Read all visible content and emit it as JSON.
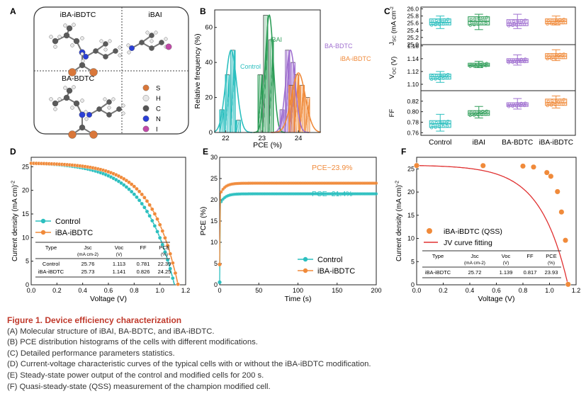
{
  "colors": {
    "control": "#2bbfbf",
    "ibai": "#2e9d58",
    "babdtc": "#a070d0",
    "ibaibdtc": "#f08a3a",
    "fit": "#e03030",
    "caption_title": "#c0392b"
  },
  "panelA": {
    "letter": "A",
    "labels": {
      "top_left": "iBA-iBDTC",
      "top_right": "iBAI",
      "bottom_left": "BA-BDTC"
    },
    "legend": [
      {
        "symbol": "S",
        "color": "#d9773a"
      },
      {
        "symbol": "H",
        "color": "#e6e6e6"
      },
      {
        "symbol": "C",
        "color": "#555555"
      },
      {
        "symbol": "N",
        "color": "#2a3fd6"
      },
      {
        "symbol": "I",
        "color": "#c24aa8"
      }
    ]
  },
  "chart_data": [
    {
      "panel": "B",
      "letter": "B",
      "type": "bar",
      "xlabel": "PCE (%)",
      "ylabel": "Relative frequency (%)",
      "xlim": [
        21.7,
        24.6
      ],
      "ylim": [
        0,
        70
      ],
      "xticks": [
        22,
        23,
        24
      ],
      "yticks": [
        0,
        20,
        40,
        60
      ],
      "series": [
        {
          "name": "Control",
          "key": "control",
          "x": [
            21.9,
            22.05,
            22.2,
            22.35
          ],
          "values": [
            13,
            33,
            47,
            7
          ]
        },
        {
          "name": "iBAI",
          "key": "ibai",
          "x": [
            22.95,
            23.1,
            23.25
          ],
          "values": [
            33,
            67,
            53
          ]
        },
        {
          "name": "BA-BDTC",
          "key": "babdtc",
          "x": [
            23.55,
            23.7,
            23.85
          ],
          "values": [
            13,
            47,
            40
          ]
        },
        {
          "name": "iBA-iBDTC",
          "key": "ibaibdtc",
          "x": [
            23.8,
            23.95,
            24.1,
            24.25
          ],
          "values": [
            27,
            33,
            27,
            20
          ]
        }
      ],
      "fits": [
        {
          "key": "control",
          "mu": 22.15,
          "sigma": 0.15,
          "peak": 47
        },
        {
          "key": "ibai",
          "mu": 23.2,
          "sigma": 0.11,
          "peak": 67
        },
        {
          "key": "babdtc",
          "mu": 23.78,
          "sigma": 0.13,
          "peak": 47
        },
        {
          "key": "ibaibdtc",
          "mu": 24.0,
          "sigma": 0.19,
          "peak": 34
        }
      ],
      "annotations": [
        "Control",
        "iBAI",
        "BA-BDTC",
        "iBA-iBDTC"
      ]
    },
    {
      "panel": "C",
      "letter": "C",
      "type": "box",
      "categories": [
        "Control",
        "iBAI",
        "BA-BDTC",
        "iBA-iBDTC"
      ],
      "subplots": [
        {
          "ylabel": "JSC (mA cm-2)",
          "ylabel_main": "J",
          "ylabel_sub": "SC",
          "ylabel_unit": " (mA cm",
          "ylabel_sup": "-2",
          "ylabel_close": ")",
          "ylim": [
            25.0,
            26.05
          ],
          "yticks": [
            25.0,
            25.2,
            25.4,
            25.6,
            25.8,
            26.0
          ],
          "tick_fmt": 1,
          "median": [
            25.62,
            25.65,
            25.6,
            25.65
          ],
          "q1": [
            25.55,
            25.55,
            25.53,
            25.58
          ],
          "q3": [
            25.72,
            25.78,
            25.7,
            25.72
          ],
          "min": [
            25.45,
            25.42,
            25.45,
            25.55
          ],
          "max": [
            25.8,
            25.85,
            25.85,
            25.8
          ]
        },
        {
          "ylabel": "VOC (V)",
          "ylabel_main": "V",
          "ylabel_sub": "OC",
          "ylabel_unit": " (V)",
          "ylabel_sup": "",
          "ylabel_close": "",
          "ylim": [
            1.09,
            1.162
          ],
          "yticks": [
            1.1,
            1.12,
            1.14,
            1.16
          ],
          "tick_fmt": 2,
          "median": [
            1.112,
            1.13,
            1.137,
            1.144
          ],
          "q1": [
            1.108,
            1.128,
            1.134,
            1.14
          ],
          "q3": [
            1.116,
            1.133,
            1.14,
            1.148
          ],
          "min": [
            1.103,
            1.126,
            1.13,
            1.137
          ],
          "max": [
            1.12,
            1.136,
            1.146,
            1.154
          ]
        },
        {
          "ylabel": "FF",
          "ylabel_main": "FF",
          "ylabel_sub": "",
          "ylabel_unit": "",
          "ylabel_sup": "",
          "ylabel_close": "",
          "ylim": [
            0.755,
            0.84
          ],
          "yticks": [
            0.76,
            0.78,
            0.8,
            0.82
          ],
          "tick_fmt": 2,
          "median": [
            0.777,
            0.797,
            0.813,
            0.817
          ],
          "q1": [
            0.77,
            0.793,
            0.81,
            0.812
          ],
          "q3": [
            0.783,
            0.802,
            0.817,
            0.824
          ],
          "min": [
            0.763,
            0.788,
            0.805,
            0.807
          ],
          "max": [
            0.795,
            0.81,
            0.825,
            0.83
          ]
        }
      ]
    },
    {
      "panel": "D",
      "letter": "D",
      "type": "line",
      "xlabel": "Voltage (V)",
      "ylabel": "Current density (mA cm-2)",
      "ylabel_main": "Current density (mA cm",
      "ylabel_sup": "-2",
      "ylabel_close": ")",
      "xlim": [
        0,
        1.2
      ],
      "ylim": [
        0,
        27
      ],
      "xticks": [
        0.0,
        0.2,
        0.4,
        0.6,
        0.8,
        1.0,
        1.2
      ],
      "yticks": [
        0,
        5,
        10,
        15,
        20,
        25
      ],
      "series": [
        {
          "name": "Control",
          "key": "control",
          "jsc": 25.76,
          "voc": 1.113,
          "n": 9,
          "v0": 0.55
        },
        {
          "name": "iBA-iBDTC",
          "key": "ibaibdtc",
          "jsc": 25.73,
          "voc": 1.141,
          "n": 8,
          "v0": 0.55
        }
      ],
      "table": {
        "headers": [
          {
            "main": "Type",
            "sub": ""
          },
          {
            "main": "Jsc",
            "sub": "(mA cm-2)"
          },
          {
            "main": "Voc",
            "sub": "(V)"
          },
          {
            "main": "FF",
            "sub": ""
          },
          {
            "main": "PCE",
            "sub": "(%)"
          }
        ],
        "rows": [
          [
            "Control",
            "25.76",
            "1.113",
            "0.781",
            "22.39"
          ],
          [
            "iBA-iBDTC",
            "25.73",
            "1.141",
            "0.826",
            "24.25"
          ]
        ]
      }
    },
    {
      "panel": "E",
      "letter": "E",
      "type": "line",
      "xlabel": "Time (s)",
      "ylabel": "PCE (%)",
      "xlim": [
        0,
        200
      ],
      "ylim": [
        0,
        30
      ],
      "xticks": [
        0,
        50,
        100,
        150,
        200
      ],
      "yticks": [
        0,
        5,
        10,
        15,
        20,
        25,
        30
      ],
      "series": [
        {
          "name": "Control",
          "key": "control",
          "steady": 21.4,
          "start": 0.6
        },
        {
          "name": "iBA-iBDTC",
          "key": "ibaibdtc",
          "steady": 23.9,
          "start": 4.8
        }
      ],
      "annotations": [
        "PCE~23.9%",
        "PCE~21.4%"
      ]
    },
    {
      "panel": "F",
      "letter": "F",
      "type": "scatter",
      "xlabel": "Voltage (V)",
      "ylabel": "Current density (mA cm-2)",
      "ylabel_main": "Current density (mA cm",
      "ylabel_sup": "-2",
      "ylabel_close": ")",
      "xlim": [
        0,
        1.2
      ],
      "ylim": [
        0,
        27.5
      ],
      "xticks": [
        0.0,
        0.2,
        0.4,
        0.6,
        0.8,
        1.0,
        1.2
      ],
      "yticks": [
        0,
        5,
        10,
        15,
        20,
        25
      ],
      "series": [
        {
          "name": "iBA-iBDTC (QSS)",
          "key": "ibaibdtc",
          "x": [
            0.0,
            0.5,
            0.8,
            0.88,
            0.98,
            1.01,
            1.06,
            1.09,
            1.12,
            1.14
          ],
          "y": [
            25.72,
            25.7,
            25.6,
            25.4,
            24.2,
            23.4,
            20.1,
            15.7,
            9.6,
            0.1
          ]
        },
        {
          "name": "JV curve fitting",
          "key": "fit",
          "jsc": 25.72,
          "voc": 1.139,
          "n": 8,
          "v0": 0.55
        }
      ],
      "table": {
        "headers": [
          {
            "main": "Type",
            "sub": ""
          },
          {
            "main": "Jsc",
            "sub": "(mA cm-2)"
          },
          {
            "main": "Voc",
            "sub": "(V)"
          },
          {
            "main": "FF",
            "sub": ""
          },
          {
            "main": "PCE",
            "sub": "(%)"
          }
        ],
        "rows": [
          [
            "iBA-iBDTC",
            "25.72",
            "1.139",
            "0.817",
            "23.93"
          ]
        ]
      }
    }
  ],
  "caption": {
    "title": "Figure 1. Device efficiency characterization",
    "lines": [
      "(A) Molecular structure of iBAI, BA-BDTC, and iBA-iBDTC.",
      "(B) PCE distribution histograms of the cells with different modifications.",
      "(C) Detailed performance parameters statistics.",
      "(D) Current-voltage characteristic curves of the typical cells with or without the iBA-iBDTC modification.",
      "(E) Steady-state power output of the control and modified cells for 200 s.",
      "(F) Quasi-steady-state (QSS) measurement of the champion modified cell."
    ]
  }
}
